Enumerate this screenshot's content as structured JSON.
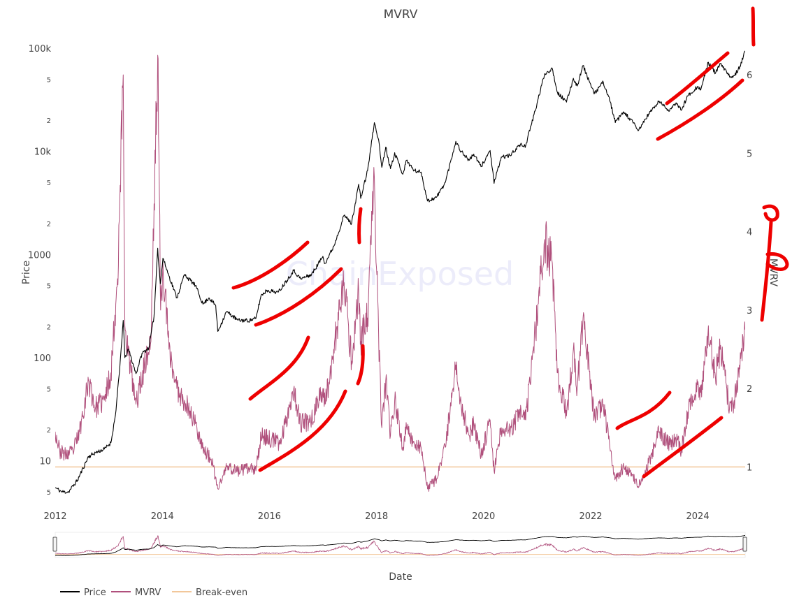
{
  "chart_data": {
    "type": "line",
    "title": "MVRV",
    "xlabel": "Date",
    "ylabel_left": "Price",
    "ylabel_right": "MVRV",
    "watermark": "ChainExposed",
    "x_range": [
      "2012-01-01",
      "2024-11-20"
    ],
    "x_ticks": [
      "2012",
      "2014",
      "2016",
      "2018",
      "2020",
      "2022",
      "2024"
    ],
    "y_left": {
      "scale": "log",
      "range": [
        3.9,
        115000
      ],
      "major_ticks": [
        {
          "value": 10,
          "label": "10"
        },
        {
          "value": 100,
          "label": "100"
        },
        {
          "value": 1000,
          "label": "1000"
        },
        {
          "value": 10000,
          "label": "10k"
        },
        {
          "value": 100000,
          "label": "100k"
        }
      ],
      "minor_ticks": [
        {
          "value": 5,
          "label": "5"
        },
        {
          "value": 20,
          "label": "2"
        },
        {
          "value": 50,
          "label": "5"
        },
        {
          "value": 200,
          "label": "2"
        },
        {
          "value": 500,
          "label": "5"
        },
        {
          "value": 2000,
          "label": "2"
        },
        {
          "value": 5000,
          "label": "5"
        },
        {
          "value": 20000,
          "label": "2"
        },
        {
          "value": 50000,
          "label": "5"
        }
      ]
    },
    "y_right": {
      "scale": "linear",
      "range": [
        0.54,
        6.42
      ],
      "ticks": [
        1,
        2,
        3,
        4,
        5,
        6
      ]
    },
    "legend": {
      "placement": "bottom-left",
      "items": [
        "Price",
        "MVRV",
        "Break-even"
      ]
    },
    "colors": {
      "price": "#000000",
      "mvrv": "#b0507c",
      "breakeven": "#f2c79a",
      "annotation": "#ee0000"
    },
    "series": [
      {
        "name": "Price",
        "axis": "left",
        "points": [
          [
            "2012-01-01",
            5.5
          ],
          [
            "2012-02-15",
            5.0
          ],
          [
            "2012-04-01",
            5.0
          ],
          [
            "2012-06-01",
            6.5
          ],
          [
            "2012-08-15",
            11
          ],
          [
            "2012-10-01",
            12
          ],
          [
            "2012-12-01",
            13
          ],
          [
            "2013-01-15",
            15
          ],
          [
            "2013-02-15",
            28
          ],
          [
            "2013-03-15",
            75
          ],
          [
            "2013-04-09",
            230
          ],
          [
            "2013-04-20",
            100
          ],
          [
            "2013-05-15",
            120
          ],
          [
            "2013-07-05",
            70
          ],
          [
            "2013-08-15",
            110
          ],
          [
            "2013-10-01",
            125
          ],
          [
            "2013-11-05",
            250
          ],
          [
            "2013-11-30",
            1150
          ],
          [
            "2013-12-18",
            520
          ],
          [
            "2014-01-05",
            920
          ],
          [
            "2014-02-15",
            620
          ],
          [
            "2014-04-10",
            380
          ],
          [
            "2014-06-01",
            640
          ],
          [
            "2014-08-15",
            500
          ],
          [
            "2014-10-05",
            330
          ],
          [
            "2014-11-15",
            380
          ],
          [
            "2014-12-31",
            320
          ],
          [
            "2015-01-14",
            180
          ],
          [
            "2015-03-15",
            280
          ],
          [
            "2015-06-01",
            230
          ],
          [
            "2015-08-20",
            230
          ],
          [
            "2015-10-01",
            240
          ],
          [
            "2015-11-05",
            400
          ],
          [
            "2015-12-15",
            450
          ],
          [
            "2016-03-01",
            430
          ],
          [
            "2016-06-15",
            700
          ],
          [
            "2016-08-01",
            580
          ],
          [
            "2016-10-15",
            640
          ],
          [
            "2016-12-31",
            960
          ],
          [
            "2017-01-15",
            820
          ],
          [
            "2017-03-15",
            1200
          ],
          [
            "2017-05-25",
            2400
          ],
          [
            "2017-07-15",
            2000
          ],
          [
            "2017-09-01",
            4800
          ],
          [
            "2017-09-15",
            3500
          ],
          [
            "2017-11-01",
            6500
          ],
          [
            "2017-12-17",
            19000
          ],
          [
            "2018-01-15",
            13000
          ],
          [
            "2018-02-06",
            7000
          ],
          [
            "2018-03-05",
            11000
          ],
          [
            "2018-04-06",
            6800
          ],
          [
            "2018-05-05",
            9700
          ],
          [
            "2018-06-29",
            6000
          ],
          [
            "2018-07-25",
            8200
          ],
          [
            "2018-09-15",
            6500
          ],
          [
            "2018-11-01",
            6300
          ],
          [
            "2018-12-15",
            3300
          ],
          [
            "2019-02-15",
            3600
          ],
          [
            "2019-04-15",
            5000
          ],
          [
            "2019-06-26",
            12500
          ],
          [
            "2019-08-01",
            10000
          ],
          [
            "2019-09-25",
            8200
          ],
          [
            "2019-10-26",
            9400
          ],
          [
            "2019-12-15",
            7100
          ],
          [
            "2020-02-15",
            10200
          ],
          [
            "2020-03-13",
            4900
          ],
          [
            "2020-05-01",
            8800
          ],
          [
            "2020-07-01",
            9100
          ],
          [
            "2020-09-01",
            11500
          ],
          [
            "2020-10-15",
            11400
          ],
          [
            "2020-12-31",
            29000
          ],
          [
            "2021-02-20",
            56000
          ],
          [
            "2021-04-14",
            63500
          ],
          [
            "2021-05-20",
            37000
          ],
          [
            "2021-07-20",
            30000
          ],
          [
            "2021-09-05",
            51000
          ],
          [
            "2021-10-01",
            43000
          ],
          [
            "2021-11-10",
            68000
          ],
          [
            "2022-01-25",
            36000
          ],
          [
            "2022-03-28",
            47000
          ],
          [
            "2022-05-15",
            30000
          ],
          [
            "2022-06-18",
            19000
          ],
          [
            "2022-08-15",
            24000
          ],
          [
            "2022-10-15",
            19200
          ],
          [
            "2022-11-21",
            15800
          ],
          [
            "2023-01-31",
            23000
          ],
          [
            "2023-04-14",
            30500
          ],
          [
            "2023-06-15",
            25100
          ],
          [
            "2023-08-15",
            29000
          ],
          [
            "2023-09-11",
            25000
          ],
          [
            "2023-10-25",
            34500
          ],
          [
            "2023-12-31",
            42500
          ],
          [
            "2024-01-22",
            39500
          ],
          [
            "2024-03-14",
            73000
          ],
          [
            "2024-05-01",
            57000
          ],
          [
            "2024-06-05",
            71000
          ],
          [
            "2024-08-05",
            53000
          ],
          [
            "2024-09-06",
            54000
          ],
          [
            "2024-10-15",
            67000
          ],
          [
            "2024-11-20",
            94000
          ]
        ]
      },
      {
        "name": "MVRV",
        "axis": "right",
        "points": [
          [
            "2012-01-01",
            1.45
          ],
          [
            "2012-02-01",
            1.2
          ],
          [
            "2012-03-15",
            1.15
          ],
          [
            "2012-05-01",
            1.2
          ],
          [
            "2012-06-15",
            1.45
          ],
          [
            "2012-08-15",
            2.1
          ],
          [
            "2012-10-01",
            1.75
          ],
          [
            "2012-12-01",
            1.85
          ],
          [
            "2013-01-15",
            2.2
          ],
          [
            "2013-03-01",
            3.4
          ],
          [
            "2013-04-09",
            6.0
          ],
          [
            "2013-04-20",
            2.8
          ],
          [
            "2013-06-01",
            2.2
          ],
          [
            "2013-07-05",
            1.8
          ],
          [
            "2013-09-01",
            2.3
          ],
          [
            "2013-10-15",
            2.6
          ],
          [
            "2013-11-30",
            6.25
          ],
          [
            "2013-12-20",
            3.0
          ],
          [
            "2014-01-05",
            3.6
          ],
          [
            "2014-02-15",
            2.5
          ],
          [
            "2014-04-10",
            2.0
          ],
          [
            "2014-06-01",
            1.85
          ],
          [
            "2014-08-15",
            1.55
          ],
          [
            "2014-10-15",
            1.2
          ],
          [
            "2014-11-30",
            1.1
          ],
          [
            "2015-01-14",
            0.72
          ],
          [
            "2015-03-15",
            1.0
          ],
          [
            "2015-06-01",
            0.95
          ],
          [
            "2015-08-20",
            0.98
          ],
          [
            "2015-10-01",
            0.95
          ],
          [
            "2015-11-05",
            1.4
          ],
          [
            "2016-01-15",
            1.35
          ],
          [
            "2016-03-15",
            1.3
          ],
          [
            "2016-06-15",
            2.0
          ],
          [
            "2016-08-01",
            1.55
          ],
          [
            "2016-10-15",
            1.6
          ],
          [
            "2016-12-31",
            2.0
          ],
          [
            "2017-01-15",
            1.8
          ],
          [
            "2017-03-15",
            2.5
          ],
          [
            "2017-05-25",
            3.35
          ],
          [
            "2017-07-15",
            2.35
          ],
          [
            "2017-09-01",
            3.25
          ],
          [
            "2017-09-15",
            2.6
          ],
          [
            "2017-11-01",
            2.9
          ],
          [
            "2017-12-17",
            4.7
          ],
          [
            "2018-01-15",
            2.7
          ],
          [
            "2018-02-06",
            1.5
          ],
          [
            "2018-03-05",
            2.1
          ],
          [
            "2018-04-06",
            1.4
          ],
          [
            "2018-05-05",
            1.85
          ],
          [
            "2018-06-29",
            1.25
          ],
          [
            "2018-07-25",
            1.5
          ],
          [
            "2018-09-15",
            1.3
          ],
          [
            "2018-11-01",
            1.25
          ],
          [
            "2018-12-15",
            0.72
          ],
          [
            "2019-02-15",
            0.85
          ],
          [
            "2019-04-15",
            1.25
          ],
          [
            "2019-06-26",
            2.3
          ],
          [
            "2019-08-01",
            1.8
          ],
          [
            "2019-09-25",
            1.4
          ],
          [
            "2019-10-26",
            1.55
          ],
          [
            "2019-12-15",
            1.15
          ],
          [
            "2020-02-15",
            1.6
          ],
          [
            "2020-03-13",
            0.95
          ],
          [
            "2020-05-01",
            1.5
          ],
          [
            "2020-07-01",
            1.45
          ],
          [
            "2020-09-01",
            1.7
          ],
          [
            "2020-10-15",
            1.6
          ],
          [
            "2020-12-31",
            2.9
          ],
          [
            "2021-02-20",
            3.9
          ],
          [
            "2021-04-14",
            3.6
          ],
          [
            "2021-05-20",
            2.2
          ],
          [
            "2021-07-20",
            1.65
          ],
          [
            "2021-09-05",
            2.5
          ],
          [
            "2021-10-01",
            2.0
          ],
          [
            "2021-11-10",
            2.9
          ],
          [
            "2022-01-25",
            1.65
          ],
          [
            "2022-03-28",
            1.8
          ],
          [
            "2022-05-15",
            1.2
          ],
          [
            "2022-06-18",
            0.85
          ],
          [
            "2022-08-15",
            1.0
          ],
          [
            "2022-10-15",
            0.9
          ],
          [
            "2022-11-21",
            0.75
          ],
          [
            "2023-01-31",
            1.05
          ],
          [
            "2023-04-14",
            1.45
          ],
          [
            "2023-06-15",
            1.3
          ],
          [
            "2023-08-15",
            1.35
          ],
          [
            "2023-09-11",
            1.2
          ],
          [
            "2023-10-25",
            1.7
          ],
          [
            "2023-12-31",
            2.05
          ],
          [
            "2024-01-22",
            1.95
          ],
          [
            "2024-03-14",
            2.8
          ],
          [
            "2024-05-01",
            2.15
          ],
          [
            "2024-06-05",
            2.55
          ],
          [
            "2024-08-05",
            1.75
          ],
          [
            "2024-09-06",
            1.85
          ],
          [
            "2024-10-15",
            2.25
          ],
          [
            "2024-11-20",
            2.75
          ]
        ]
      },
      {
        "name": "Break-even",
        "axis": "right",
        "points": [
          [
            "2012-01-01",
            1
          ],
          [
            "2024-11-20",
            1
          ]
        ]
      }
    ]
  }
}
